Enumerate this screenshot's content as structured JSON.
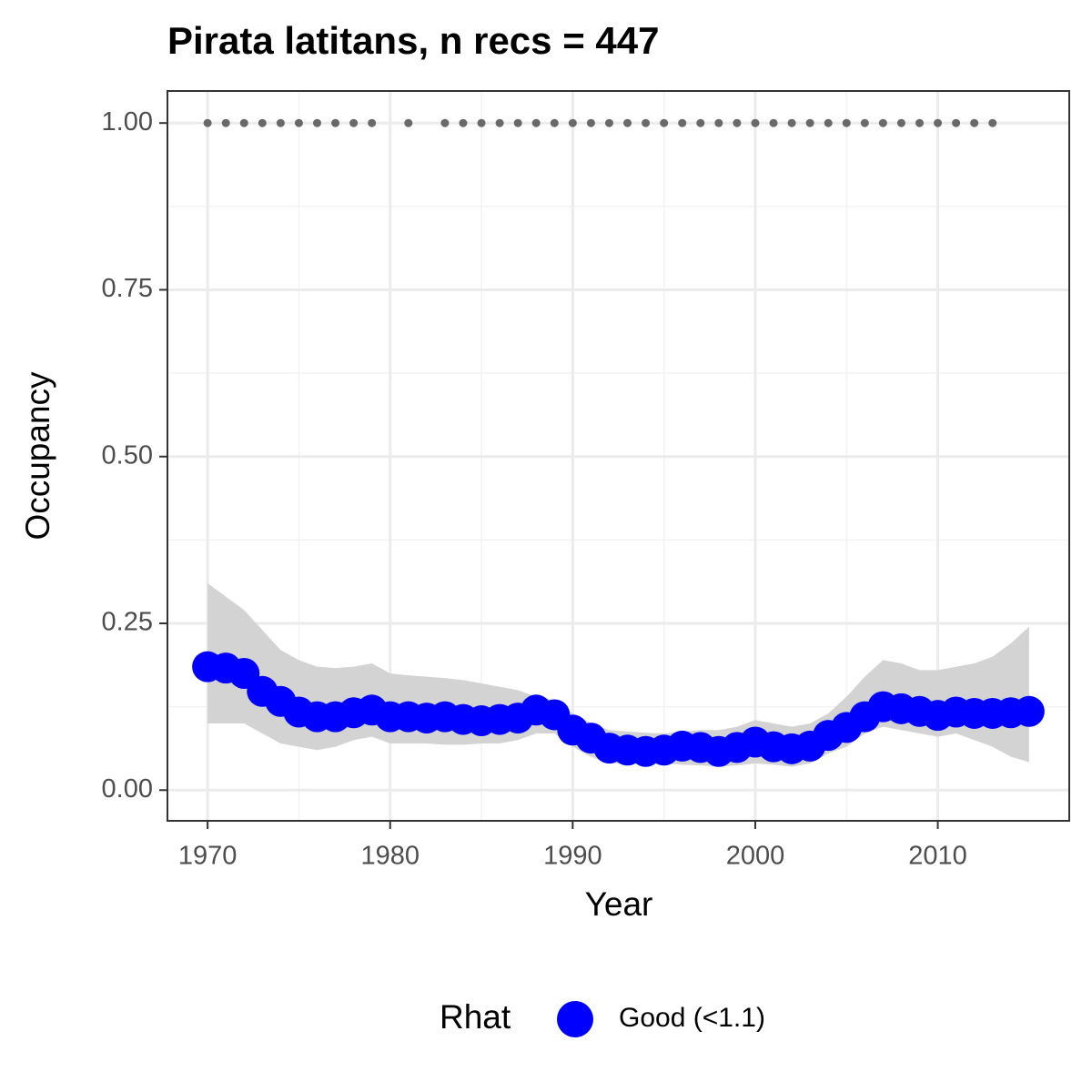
{
  "chart_data": {
    "type": "line",
    "title": "Pirata latitans, n recs = 447",
    "x_label": "Year",
    "y_label": "Occupancy",
    "x": [
      1970,
      1971,
      1972,
      1973,
      1974,
      1975,
      1976,
      1977,
      1978,
      1979,
      1980,
      1981,
      1982,
      1983,
      1984,
      1985,
      1986,
      1987,
      1988,
      1989,
      1990,
      1991,
      1992,
      1993,
      1994,
      1995,
      1996,
      1997,
      1998,
      1999,
      2000,
      2001,
      2002,
      2003,
      2004,
      2005,
      2006,
      2007,
      2008,
      2009,
      2010,
      2011,
      2012,
      2013,
      2014,
      2015
    ],
    "series": [
      {
        "name": "Good (<1.1)",
        "color": "#0000ff",
        "values": [
          0.185,
          0.183,
          0.175,
          0.148,
          0.133,
          0.117,
          0.11,
          0.11,
          0.116,
          0.12,
          0.11,
          0.11,
          0.108,
          0.11,
          0.106,
          0.104,
          0.106,
          0.108,
          0.12,
          0.113,
          0.09,
          0.078,
          0.063,
          0.06,
          0.058,
          0.06,
          0.066,
          0.064,
          0.058,
          0.064,
          0.072,
          0.065,
          0.062,
          0.066,
          0.082,
          0.094,
          0.11,
          0.125,
          0.122,
          0.118,
          0.112,
          0.117,
          0.115,
          0.115,
          0.116,
          0.118
        ],
        "lower": [
          0.1,
          0.1,
          0.1,
          0.085,
          0.07,
          0.065,
          0.06,
          0.065,
          0.075,
          0.08,
          0.07,
          0.07,
          0.07,
          0.068,
          0.068,
          0.07,
          0.07,
          0.075,
          0.085,
          0.085,
          0.065,
          0.05,
          0.04,
          0.04,
          0.04,
          0.04,
          0.038,
          0.037,
          0.035,
          0.037,
          0.04,
          0.038,
          0.035,
          0.04,
          0.055,
          0.065,
          0.085,
          0.095,
          0.09,
          0.085,
          0.08,
          0.085,
          0.075,
          0.065,
          0.05,
          0.042
        ],
        "upper": [
          0.31,
          0.29,
          0.27,
          0.24,
          0.21,
          0.195,
          0.185,
          0.183,
          0.185,
          0.19,
          0.175,
          0.172,
          0.17,
          0.168,
          0.165,
          0.16,
          0.155,
          0.15,
          0.14,
          0.135,
          0.115,
          0.1,
          0.09,
          0.088,
          0.086,
          0.085,
          0.088,
          0.09,
          0.09,
          0.095,
          0.105,
          0.1,
          0.095,
          0.1,
          0.115,
          0.14,
          0.17,
          0.195,
          0.19,
          0.18,
          0.18,
          0.185,
          0.19,
          0.2,
          0.22,
          0.245
        ]
      }
    ],
    "ribbon_color": "#d3d3d3",
    "records": {
      "color": "#696969",
      "x": [
        1970,
        1971,
        1972,
        1973,
        1974,
        1975,
        1976,
        1977,
        1978,
        1979,
        1981,
        1983,
        1984,
        1985,
        1986,
        1987,
        1988,
        1989,
        1990,
        1991,
        1992,
        1993,
        1994,
        1995,
        1996,
        1997,
        1998,
        1999,
        2000,
        2001,
        2002,
        2003,
        2004,
        2005,
        2006,
        2007,
        2008,
        2009,
        2010,
        2011,
        2012,
        2013
      ],
      "values": [
        1,
        1,
        1,
        1,
        1,
        1,
        1,
        1,
        1,
        1,
        1,
        1,
        1,
        1,
        1,
        1,
        1,
        1,
        1,
        1,
        1,
        1,
        1,
        1,
        1,
        1,
        1,
        1,
        1,
        1,
        1,
        1,
        1,
        1,
        1,
        1,
        1,
        1,
        1,
        1,
        1,
        1
      ]
    },
    "xlim": [
      1967.8,
      2017.2
    ],
    "xticks": [
      1970,
      1980,
      1990,
      2000,
      2010
    ],
    "ylim": [
      -0.046,
      1.048
    ],
    "yticks": [
      {
        "value": 0,
        "label": "0.00"
      },
      {
        "value": 0.25,
        "label": "0.25"
      },
      {
        "value": 0.5,
        "label": "0.50"
      },
      {
        "value": 0.75,
        "label": "0.75"
      },
      {
        "value": 1,
        "label": "1.00"
      }
    ],
    "grid": true,
    "legend_title": "Rhat",
    "legend_position": "bottom"
  }
}
